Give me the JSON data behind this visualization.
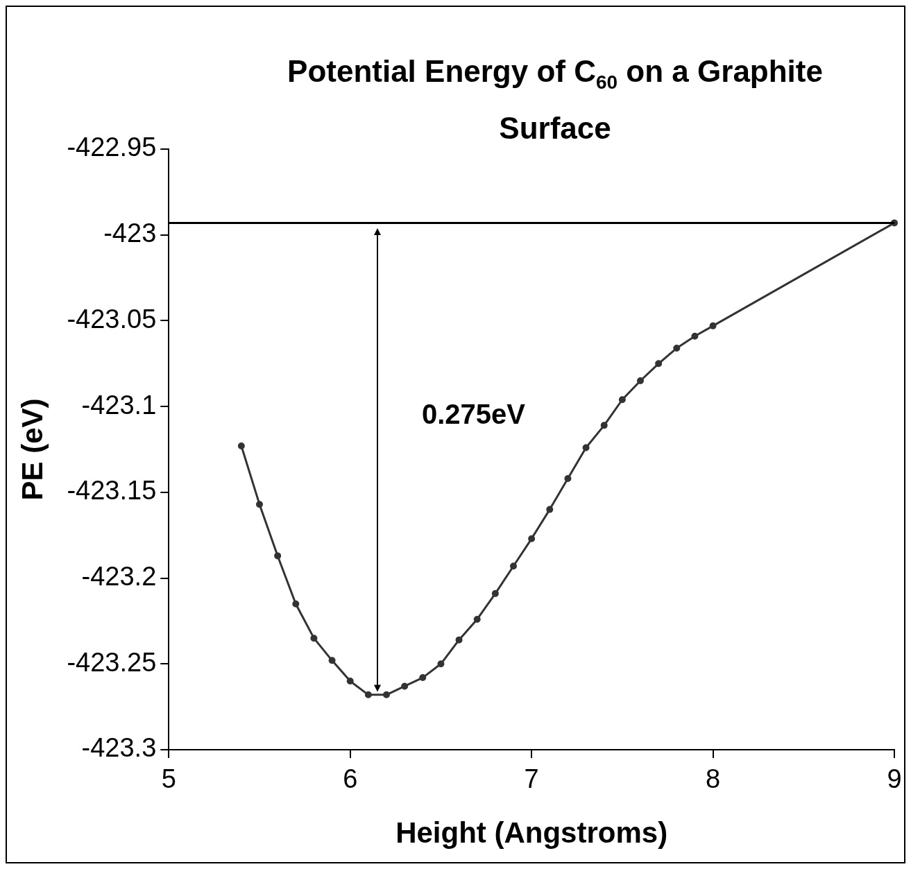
{
  "chart_data": {
    "type": "line",
    "title": "Potential Energy of C$_{60}$ on a Graphite Surface",
    "xlabel": "Height (Angstroms)",
    "ylabel": "PE (eV)",
    "x": [
      5.4,
      5.5,
      5.6,
      5.7,
      5.8,
      5.9,
      6.0,
      6.1,
      6.2,
      6.3,
      6.4,
      6.5,
      6.6,
      6.7,
      6.8,
      6.9,
      7.0,
      7.1,
      7.2,
      7.3,
      7.4,
      7.5,
      7.6,
      7.7,
      7.8,
      7.9,
      8.0,
      9.0
    ],
    "values": [
      -423.123,
      -423.157,
      -423.187,
      -423.215,
      -423.235,
      -423.248,
      -423.26,
      -423.268,
      -423.268,
      -423.263,
      -423.258,
      -423.25,
      -423.236,
      -423.224,
      -423.209,
      -423.193,
      -423.177,
      -423.16,
      -423.142,
      -423.124,
      -423.111,
      -423.096,
      -423.085,
      -423.075,
      -423.066,
      -423.059,
      -423.053,
      -422.993
    ],
    "color": "#333333",
    "marker": "circle",
    "xlim": [
      5,
      9
    ],
    "xticks": [
      5,
      6,
      7,
      8,
      9
    ],
    "ylim": [
      -423.3,
      -422.95
    ],
    "yticks": [
      -423.3,
      -423.25,
      -423.2,
      -423.15,
      -423.1,
      -423.05,
      -423,
      -422.95
    ],
    "ref_lines": [
      {
        "axis": "y",
        "value": -422.993,
        "color": "#000000"
      }
    ],
    "annotations": [
      "0.275eV"
    ]
  }
}
